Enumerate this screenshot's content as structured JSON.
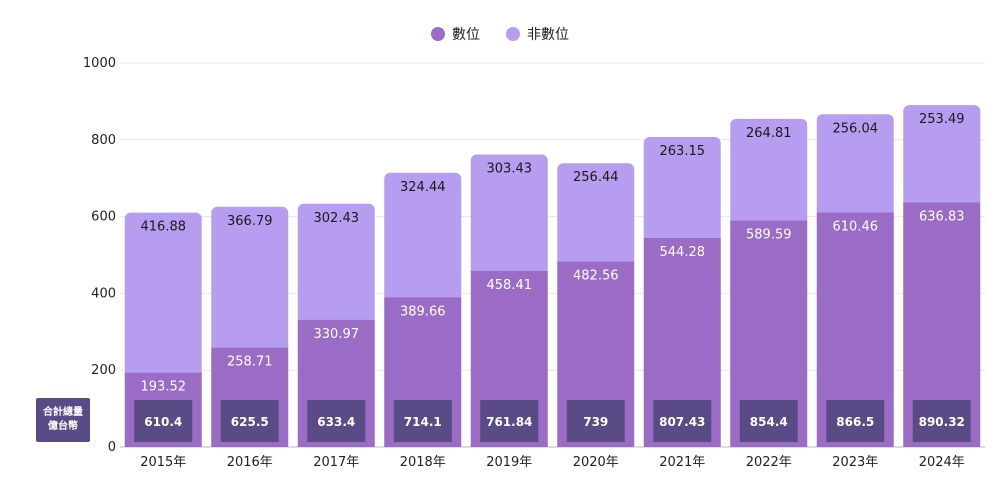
{
  "legend": {
    "digital": "數位",
    "non_digital": "非數位"
  },
  "total_label": {
    "line1": "合計總量",
    "line2": "億台幣"
  },
  "colors": {
    "digital": "#9a6cc6",
    "non_digital": "#b79df0",
    "total_box": "#5a4b86",
    "grid": "#e6e6e6"
  },
  "chart_data": {
    "type": "bar",
    "stacked": true,
    "categories": [
      "2015年",
      "2016年",
      "2017年",
      "2018年",
      "2019年",
      "2020年",
      "2021年",
      "2022年",
      "2023年",
      "2024年"
    ],
    "series": [
      {
        "name": "數位",
        "values": [
          193.52,
          258.71,
          330.97,
          389.66,
          458.41,
          482.56,
          544.28,
          589.59,
          610.46,
          636.83
        ]
      },
      {
        "name": "非數位",
        "values": [
          416.88,
          366.79,
          302.43,
          324.44,
          303.43,
          256.44,
          263.15,
          264.81,
          256.04,
          253.49
        ]
      }
    ],
    "totals": [
      "610.4",
      "625.5",
      "633.4",
      "714.1",
      "761.84",
      "739",
      "807.43",
      "854.4",
      "866.5",
      "890.32"
    ],
    "series_labels": [
      [
        "193.52",
        "258.71",
        "330.97",
        "389.66",
        "458.41",
        "482.56",
        "544.28",
        "589.59",
        "610.46",
        "636.83"
      ],
      [
        "416.88",
        "366.79",
        "302.43",
        "324.44",
        "303.43",
        "256.44",
        "263.15",
        "264.81",
        "256.04",
        "253.49"
      ]
    ],
    "yticks": [
      "0",
      "200",
      "400",
      "600",
      "800",
      "1000"
    ],
    "ylim": [
      0,
      1000
    ],
    "grid": true,
    "legend_position": "top-center"
  }
}
